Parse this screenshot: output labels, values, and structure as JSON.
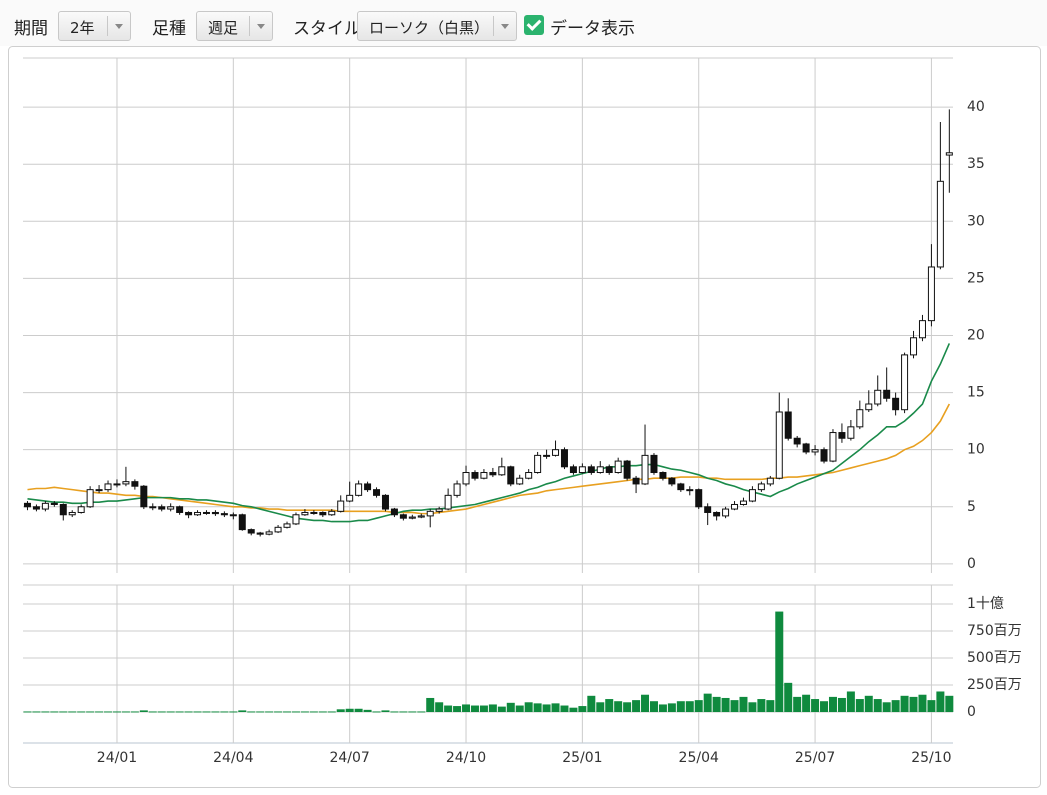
{
  "toolbar": {
    "period_label": "期間",
    "period_value": "2年",
    "bar_label": "足種",
    "bar_value": "週足",
    "style_label": "スタイル",
    "style_value": "ローソク（白黒）",
    "data_label": "データ表示"
  },
  "chart_data": {
    "type": "candlestick",
    "categories": [
      null,
      null,
      null,
      null,
      null,
      null,
      null,
      null,
      null,
      null,
      "24/01",
      null,
      null,
      null,
      null,
      null,
      null,
      null,
      null,
      null,
      null,
      null,
      null,
      "24/04",
      null,
      null,
      null,
      null,
      null,
      null,
      null,
      null,
      null,
      null,
      null,
      null,
      "24/07",
      null,
      null,
      null,
      null,
      null,
      null,
      null,
      null,
      null,
      null,
      null,
      null,
      "24/10",
      null,
      null,
      null,
      null,
      null,
      null,
      null,
      null,
      null,
      null,
      null,
      null,
      "25/01",
      null,
      null,
      null,
      null,
      null,
      null,
      null,
      null,
      null,
      null,
      null,
      null,
      "25/04",
      null,
      null,
      null,
      null,
      null,
      null,
      null,
      null,
      null,
      null,
      null,
      null,
      "25/07",
      null,
      null,
      null,
      null,
      null,
      null,
      null,
      null,
      null,
      null,
      null,
      null,
      "25/10",
      null,
      null
    ],
    "open": [
      5.3,
      5.0,
      4.8,
      5.3,
      5.2,
      4.3,
      4.5,
      5.0,
      6.5,
      6.5,
      7.0,
      7.0,
      7.2,
      6.8,
      5.0,
      5.0,
      4.8,
      5.0,
      4.5,
      4.3,
      4.5,
      4.5,
      4.4,
      4.3,
      4.3,
      3.0,
      2.7,
      2.6,
      2.8,
      3.2,
      3.5,
      4.3,
      4.5,
      4.5,
      4.3,
      4.6,
      5.5,
      6.0,
      7.0,
      6.5,
      6.0,
      4.8,
      4.3,
      4.0,
      4.1,
      4.2,
      4.6,
      4.8,
      6.0,
      7.0,
      8.0,
      7.5,
      8.0,
      7.8,
      8.5,
      7.0,
      7.5,
      8.0,
      9.5,
      9.5,
      10.0,
      8.5,
      8.0,
      8.5,
      8.0,
      8.5,
      8.0,
      9.0,
      7.5,
      7.0,
      9.5,
      8.0,
      7.5,
      7.0,
      6.5,
      6.5,
      5.0,
      4.5,
      4.2,
      4.8,
      5.2,
      5.5,
      6.5,
      7.0,
      7.5,
      13.3,
      11.0,
      10.5,
      9.8,
      10.0,
      9.0,
      11.5,
      11.0,
      12.0,
      13.5,
      14.0,
      15.2,
      14.5,
      13.5,
      18.3,
      19.8,
      21.3,
      26.0,
      35.8
    ],
    "high": [
      5.5,
      5.2,
      5.5,
      5.5,
      5.3,
      4.7,
      5.2,
      6.8,
      6.9,
      7.3,
      7.4,
      8.5,
      7.4,
      6.9,
      5.3,
      5.2,
      5.3,
      5.1,
      4.6,
      4.7,
      4.7,
      4.7,
      4.6,
      4.5,
      4.4,
      3.1,
      2.8,
      3.0,
      3.4,
      3.7,
      4.5,
      4.8,
      4.7,
      4.6,
      4.8,
      6.0,
      7.2,
      7.3,
      7.2,
      6.7,
      6.1,
      4.9,
      4.4,
      4.3,
      4.4,
      4.8,
      5.0,
      6.6,
      7.3,
      8.6,
      8.2,
      8.3,
      8.4,
      9.3,
      8.6,
      7.8,
      8.3,
      9.8,
      10.0,
      10.8,
      10.2,
      8.7,
      8.8,
      8.7,
      9.0,
      8.7,
      9.3,
      9.1,
      7.7,
      12.2,
      9.7,
      8.1,
      7.6,
      7.1,
      6.8,
      6.6,
      5.3,
      4.6,
      5.0,
      5.5,
      5.8,
      6.8,
      7.2,
      7.7,
      15.0,
      14.5,
      11.2,
      10.6,
      10.4,
      10.2,
      11.8,
      12.3,
      12.6,
      14.3,
      15.2,
      16.5,
      17.2,
      15.0,
      18.5,
      20.4,
      21.8,
      28.0,
      38.7,
      39.8
    ],
    "low": [
      4.7,
      4.6,
      4.6,
      5.0,
      3.8,
      4.1,
      4.4,
      4.9,
      6.2,
      6.3,
      6.7,
      6.8,
      6.5,
      4.8,
      4.7,
      4.6,
      4.6,
      4.3,
      4.0,
      4.2,
      4.3,
      4.2,
      4.1,
      3.9,
      2.9,
      2.5,
      2.4,
      2.5,
      2.7,
      3.1,
      3.4,
      4.2,
      4.3,
      4.1,
      4.2,
      4.5,
      5.4,
      5.9,
      6.3,
      5.8,
      4.6,
      4.1,
      3.8,
      3.9,
      4.0,
      3.2,
      4.4,
      4.7,
      5.8,
      6.8,
      7.3,
      7.4,
      7.6,
      7.7,
      6.8,
      6.9,
      7.4,
      7.9,
      9.2,
      9.4,
      8.3,
      7.8,
      7.9,
      7.8,
      7.9,
      7.8,
      7.9,
      7.3,
      6.2,
      6.9,
      7.8,
      7.3,
      6.8,
      6.3,
      6.0,
      4.8,
      3.4,
      3.8,
      4.0,
      4.7,
      5.1,
      5.4,
      6.3,
      6.8,
      7.4,
      10.8,
      10.2,
      9.6,
      9.5,
      8.8,
      8.9,
      10.6,
      10.8,
      11.8,
      13.3,
      13.8,
      14.2,
      13.0,
      13.2,
      18.0,
      19.5,
      20.8,
      25.8,
      32.5
    ],
    "close": [
      5.0,
      4.8,
      5.3,
      5.2,
      4.3,
      4.5,
      5.0,
      6.5,
      6.5,
      7.0,
      7.0,
      7.2,
      6.8,
      5.0,
      5.0,
      4.8,
      5.0,
      4.5,
      4.3,
      4.5,
      4.5,
      4.4,
      4.3,
      4.3,
      3.0,
      2.7,
      2.6,
      2.8,
      3.2,
      3.5,
      4.3,
      4.5,
      4.5,
      4.3,
      4.6,
      5.5,
      6.0,
      7.0,
      6.5,
      6.0,
      4.8,
      4.3,
      4.0,
      4.1,
      4.2,
      4.6,
      4.8,
      6.0,
      7.0,
      8.0,
      7.5,
      8.0,
      7.8,
      8.5,
      7.0,
      7.5,
      8.0,
      9.5,
      9.5,
      10.0,
      8.5,
      8.0,
      8.5,
      8.0,
      8.5,
      8.0,
      9.0,
      7.5,
      7.0,
      9.5,
      8.0,
      7.5,
      7.0,
      6.5,
      6.5,
      5.0,
      4.5,
      4.2,
      4.8,
      5.2,
      5.5,
      6.5,
      7.0,
      7.5,
      13.3,
      11.0,
      10.5,
      9.8,
      10.0,
      9.0,
      11.5,
      11.0,
      12.0,
      13.5,
      14.0,
      15.2,
      14.5,
      13.5,
      18.3,
      19.8,
      21.3,
      26.0,
      33.5,
      36.0
    ],
    "up_color": "#ffffff",
    "down_color": "#111111",
    "lines": [
      {
        "color": "#e8a020",
        "values": [
          6.5,
          6.6,
          6.6,
          6.7,
          6.6,
          6.5,
          6.4,
          6.3,
          6.2,
          6.2,
          6.1,
          6.0,
          6.0,
          5.9,
          5.9,
          5.8,
          5.7,
          5.6,
          5.5,
          5.4,
          5.3,
          5.2,
          5.1,
          5.0,
          5.0,
          4.9,
          4.9,
          4.8,
          4.8,
          4.7,
          4.7,
          4.7,
          4.7,
          4.7,
          4.7,
          4.6,
          4.6,
          4.6,
          4.6,
          4.6,
          4.6,
          4.5,
          4.5,
          4.5,
          4.4,
          4.4,
          4.5,
          4.6,
          4.7,
          4.8,
          5.0,
          5.2,
          5.4,
          5.6,
          5.8,
          6.0,
          6.1,
          6.2,
          6.4,
          6.5,
          6.6,
          6.7,
          6.8,
          6.9,
          7.0,
          7.1,
          7.2,
          7.3,
          7.4,
          7.4,
          7.5,
          7.5,
          7.5,
          7.6,
          7.6,
          7.6,
          7.5,
          7.5,
          7.4,
          7.4,
          7.4,
          7.4,
          7.4,
          7.5,
          7.5,
          7.6,
          7.6,
          7.7,
          7.8,
          7.9,
          8.0,
          8.2,
          8.4,
          8.6,
          8.8,
          9.0,
          9.2,
          9.5,
          10.0,
          10.3,
          10.8,
          11.5,
          12.5,
          14.0
        ]
      },
      {
        "color": "#1a8a4a",
        "values": [
          5.7,
          5.6,
          5.5,
          5.4,
          5.4,
          5.3,
          5.3,
          5.4,
          5.4,
          5.5,
          5.5,
          5.6,
          5.7,
          5.8,
          5.8,
          5.8,
          5.8,
          5.7,
          5.7,
          5.6,
          5.6,
          5.5,
          5.4,
          5.3,
          5.1,
          5.0,
          4.8,
          4.6,
          4.4,
          4.2,
          4.0,
          3.9,
          3.8,
          3.8,
          3.7,
          3.7,
          3.7,
          3.8,
          3.8,
          4.0,
          4.2,
          4.4,
          4.6,
          4.7,
          4.7,
          4.8,
          4.8,
          4.9,
          5.0,
          5.1,
          5.2,
          5.4,
          5.6,
          5.8,
          6.0,
          6.2,
          6.5,
          6.7,
          7.0,
          7.2,
          7.5,
          7.7,
          7.9,
          8.1,
          8.3,
          8.5,
          8.5,
          8.6,
          8.6,
          8.7,
          8.7,
          8.5,
          8.3,
          8.2,
          8.0,
          7.8,
          7.5,
          7.3,
          7.0,
          6.8,
          6.5,
          6.3,
          6.1,
          5.9,
          6.3,
          6.6,
          7.0,
          7.3,
          7.6,
          7.9,
          8.2,
          8.8,
          9.4,
          10.0,
          10.7,
          11.3,
          12.0,
          12.0,
          12.5,
          13.2,
          14.0,
          16.0,
          17.5,
          19.3
        ]
      }
    ],
    "ylim": [
      -0.8,
      44.3
    ],
    "yticks": [
      0,
      5,
      10,
      15,
      20,
      25,
      30,
      35,
      40
    ],
    "grid": true,
    "volume": {
      "color": "#0f8a3e",
      "ylim": [
        -287,
        1176
      ],
      "yticks": [
        0,
        {
          "value": 250,
          "label": "250百万"
        },
        {
          "value": 500,
          "label": "500百万"
        },
        {
          "value": 750,
          "label": "750百万"
        },
        {
          "value": 1000,
          "label": "1十億"
        }
      ],
      "values": [
        5,
        5,
        5,
        5,
        5,
        5,
        5,
        5,
        5,
        5,
        5,
        5,
        5,
        15,
        5,
        5,
        5,
        5,
        5,
        5,
        5,
        5,
        5,
        5,
        15,
        5,
        5,
        5,
        5,
        5,
        5,
        5,
        5,
        5,
        5,
        25,
        30,
        30,
        20,
        5,
        15,
        5,
        5,
        5,
        5,
        130,
        90,
        60,
        55,
        70,
        60,
        60,
        70,
        50,
        85,
        60,
        90,
        80,
        70,
        80,
        60,
        40,
        55,
        150,
        90,
        120,
        100,
        90,
        110,
        160,
        100,
        70,
        80,
        100,
        100,
        110,
        170,
        140,
        130,
        110,
        140,
        90,
        120,
        110,
        930,
        270,
        140,
        160,
        120,
        100,
        140,
        130,
        190,
        120,
        150,
        120,
        90,
        110,
        150,
        140,
        160,
        110,
        190,
        150
      ]
    }
  }
}
